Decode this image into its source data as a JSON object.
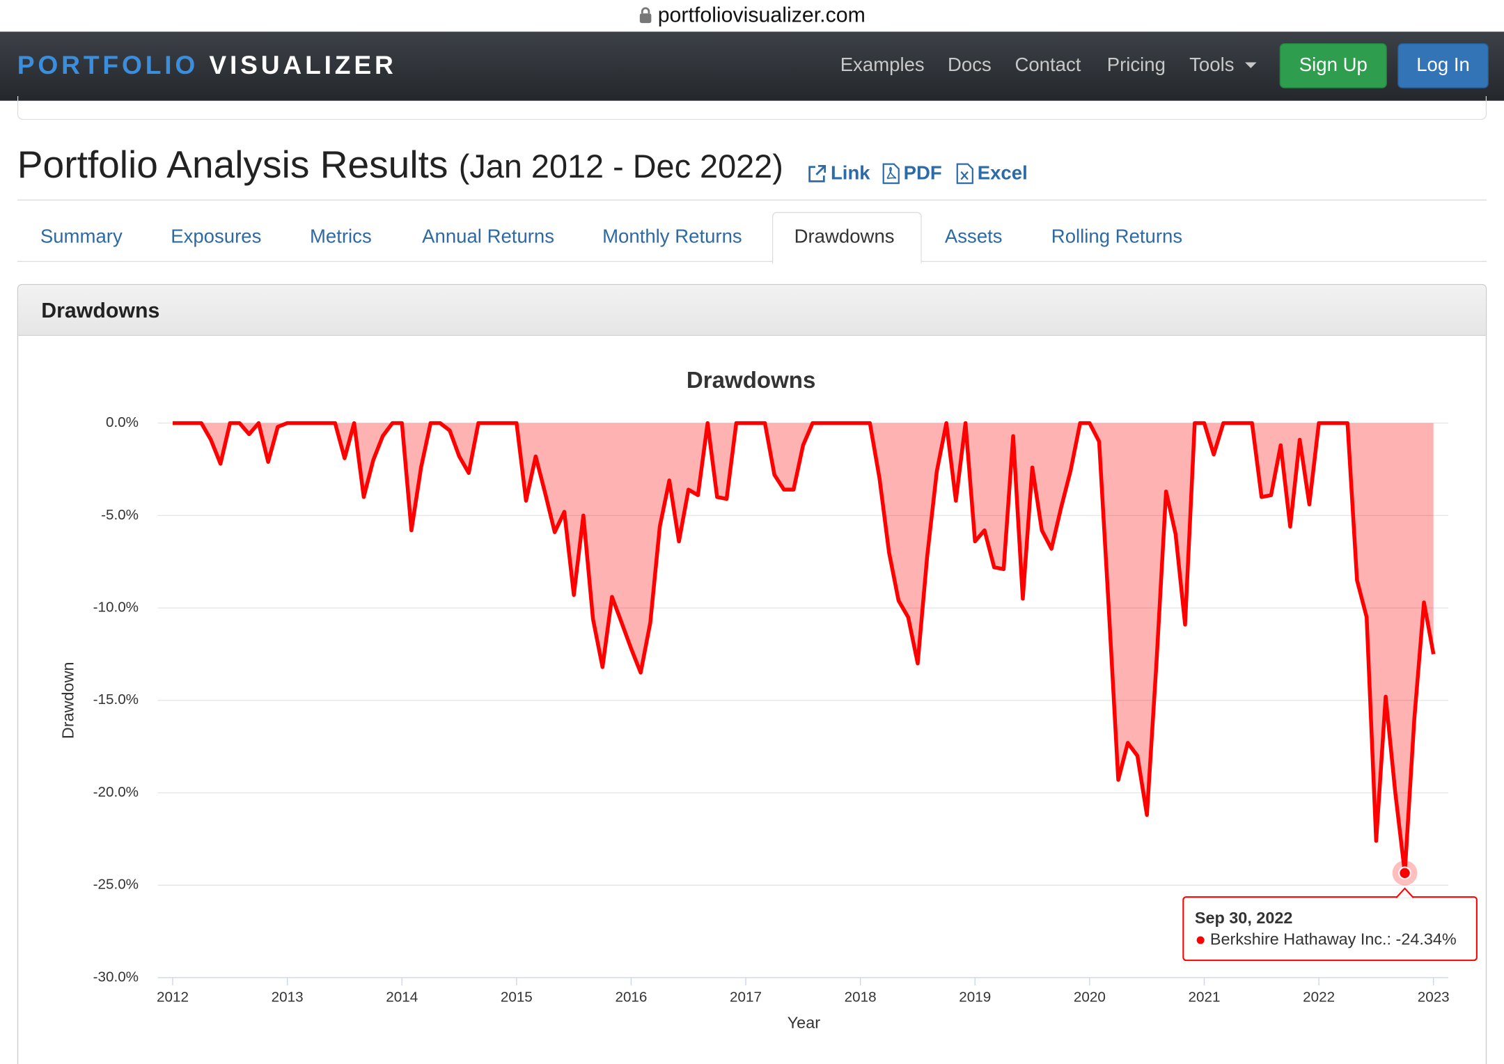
{
  "url": "portfoliovisualizer.com",
  "nav": {
    "brand_a": "PORTFOLIO",
    "brand_b": "VISUALIZER",
    "links": [
      "Examples",
      "Docs",
      "Contact",
      "Pricing",
      "Tools"
    ],
    "signup": "Sign Up",
    "login": "Log In"
  },
  "header": {
    "title": "Portfolio Analysis Results",
    "period": "(Jan 2012 - Dec 2022)",
    "actions": [
      "Link",
      "PDF",
      "Excel"
    ]
  },
  "tabs": [
    "Summary",
    "Exposures",
    "Metrics",
    "Annual Returns",
    "Monthly Returns",
    "Drawdowns",
    "Assets",
    "Rolling Returns"
  ],
  "panel_title": "Drawdowns",
  "chart_data": {
    "type": "area",
    "title": "Drawdowns",
    "x_label": "Year",
    "y_label": "Drawdown",
    "color": "#ff0000",
    "grid": true,
    "x": [
      2012,
      2012.083,
      2012.167,
      2012.25,
      2012.333,
      2012.417,
      2012.5,
      2012.583,
      2012.667,
      2012.75,
      2012.833,
      2012.917,
      2013,
      2013.083,
      2013.167,
      2013.25,
      2013.333,
      2013.417,
      2013.5,
      2013.583,
      2013.667,
      2013.75,
      2013.833,
      2013.917,
      2014,
      2014.083,
      2014.167,
      2014.25,
      2014.333,
      2014.417,
      2014.5,
      2014.583,
      2014.667,
      2014.75,
      2014.833,
      2014.917,
      2015,
      2015.083,
      2015.167,
      2015.25,
      2015.333,
      2015.417,
      2015.5,
      2015.583,
      2015.667,
      2015.75,
      2015.833,
      2015.917,
      2016,
      2016.083,
      2016.167,
      2016.25,
      2016.333,
      2016.417,
      2016.5,
      2016.583,
      2016.667,
      2016.75,
      2016.833,
      2016.917,
      2017,
      2017.083,
      2017.167,
      2017.25,
      2017.333,
      2017.417,
      2017.5,
      2017.583,
      2017.667,
      2017.75,
      2017.833,
      2017.917,
      2018,
      2018.083,
      2018.167,
      2018.25,
      2018.333,
      2018.417,
      2018.5,
      2018.583,
      2018.667,
      2018.75,
      2018.833,
      2018.917,
      2019,
      2019.083,
      2019.167,
      2019.25,
      2019.333,
      2019.417,
      2019.5,
      2019.583,
      2019.667,
      2019.75,
      2019.833,
      2019.917,
      2020,
      2020.083,
      2020.167,
      2020.25,
      2020.333,
      2020.417,
      2020.5,
      2020.583,
      2020.667,
      2020.75,
      2020.833,
      2020.917,
      2021,
      2021.083,
      2021.167,
      2021.25,
      2021.333,
      2021.417,
      2021.5,
      2021.583,
      2021.667,
      2021.75,
      2021.833,
      2021.917,
      2022,
      2022.083,
      2022.167,
      2022.25,
      2022.333,
      2022.417,
      2022.5,
      2022.583,
      2022.667,
      2022.75,
      2022.833,
      2022.917,
      2023
    ],
    "values": [
      0,
      0,
      0,
      0,
      -0.9,
      -2.2,
      0,
      0,
      -0.6,
      0,
      -2.1,
      -0.2,
      0,
      0,
      0,
      0,
      0,
      0,
      -1.9,
      0,
      -4.0,
      -2.0,
      -0.7,
      0,
      0,
      -5.8,
      -2.4,
      0,
      0,
      -0.4,
      -1.8,
      -2.7,
      0,
      0,
      0,
      0,
      0,
      -4.2,
      -1.8,
      -3.8,
      -5.9,
      -4.8,
      -9.3,
      -5.0,
      -10.6,
      -13.2,
      -9.4,
      -10.8,
      -12.2,
      -13.5,
      -10.8,
      -5.6,
      -3.1,
      -6.4,
      -3.6,
      -3.9,
      0,
      -4.0,
      -4.1,
      0,
      0,
      0,
      0,
      -2.8,
      -3.6,
      -3.6,
      -1.2,
      0,
      0,
      0,
      0,
      0,
      0,
      0,
      -3.0,
      -7.0,
      -9.6,
      -10.5,
      -13.0,
      -7.2,
      -2.6,
      0,
      -4.2,
      0,
      -6.4,
      -5.8,
      -7.8,
      -7.9,
      -0.7,
      -9.5,
      -2.4,
      -5.8,
      -6.8,
      -4.6,
      -2.6,
      0,
      0,
      -1.0,
      -10.0,
      -19.3,
      -17.3,
      -18.0,
      -21.2,
      -13.0,
      -3.7,
      -6.0,
      -10.9,
      0,
      0,
      -1.7,
      0,
      0,
      0,
      0,
      -4.0,
      -3.9,
      -1.2,
      -5.6,
      -0.9,
      -4.4,
      0,
      0,
      0,
      0,
      -8.5,
      -10.5,
      -22.6,
      -14.8,
      -20.0,
      -24.34,
      -16.0,
      -9.7,
      -12.5
    ],
    "xlim": [
      2011.87,
      2023.13
    ],
    "xticks": [
      2012,
      2013,
      2014,
      2015,
      2016,
      2017,
      2018,
      2019,
      2020,
      2021,
      2022,
      2023
    ],
    "ylim": [
      -30,
      0
    ],
    "yticks": [
      {
        "value": 0,
        "label": "0.0%"
      },
      {
        "value": -5,
        "label": "-5.0%"
      },
      {
        "value": -10,
        "label": "-10.0%"
      },
      {
        "value": -15,
        "label": "-15.0%"
      },
      {
        "value": -20,
        "label": "-20.0%"
      },
      {
        "value": -25,
        "label": "-25.0%"
      },
      {
        "value": -30,
        "label": "-30.0%"
      }
    ],
    "tooltip": {
      "title": "Sep 30, 2022",
      "label": "Berkshire Hathaway Inc.: -24.34%",
      "x": 2022.75,
      "value": -24.34
    }
  }
}
